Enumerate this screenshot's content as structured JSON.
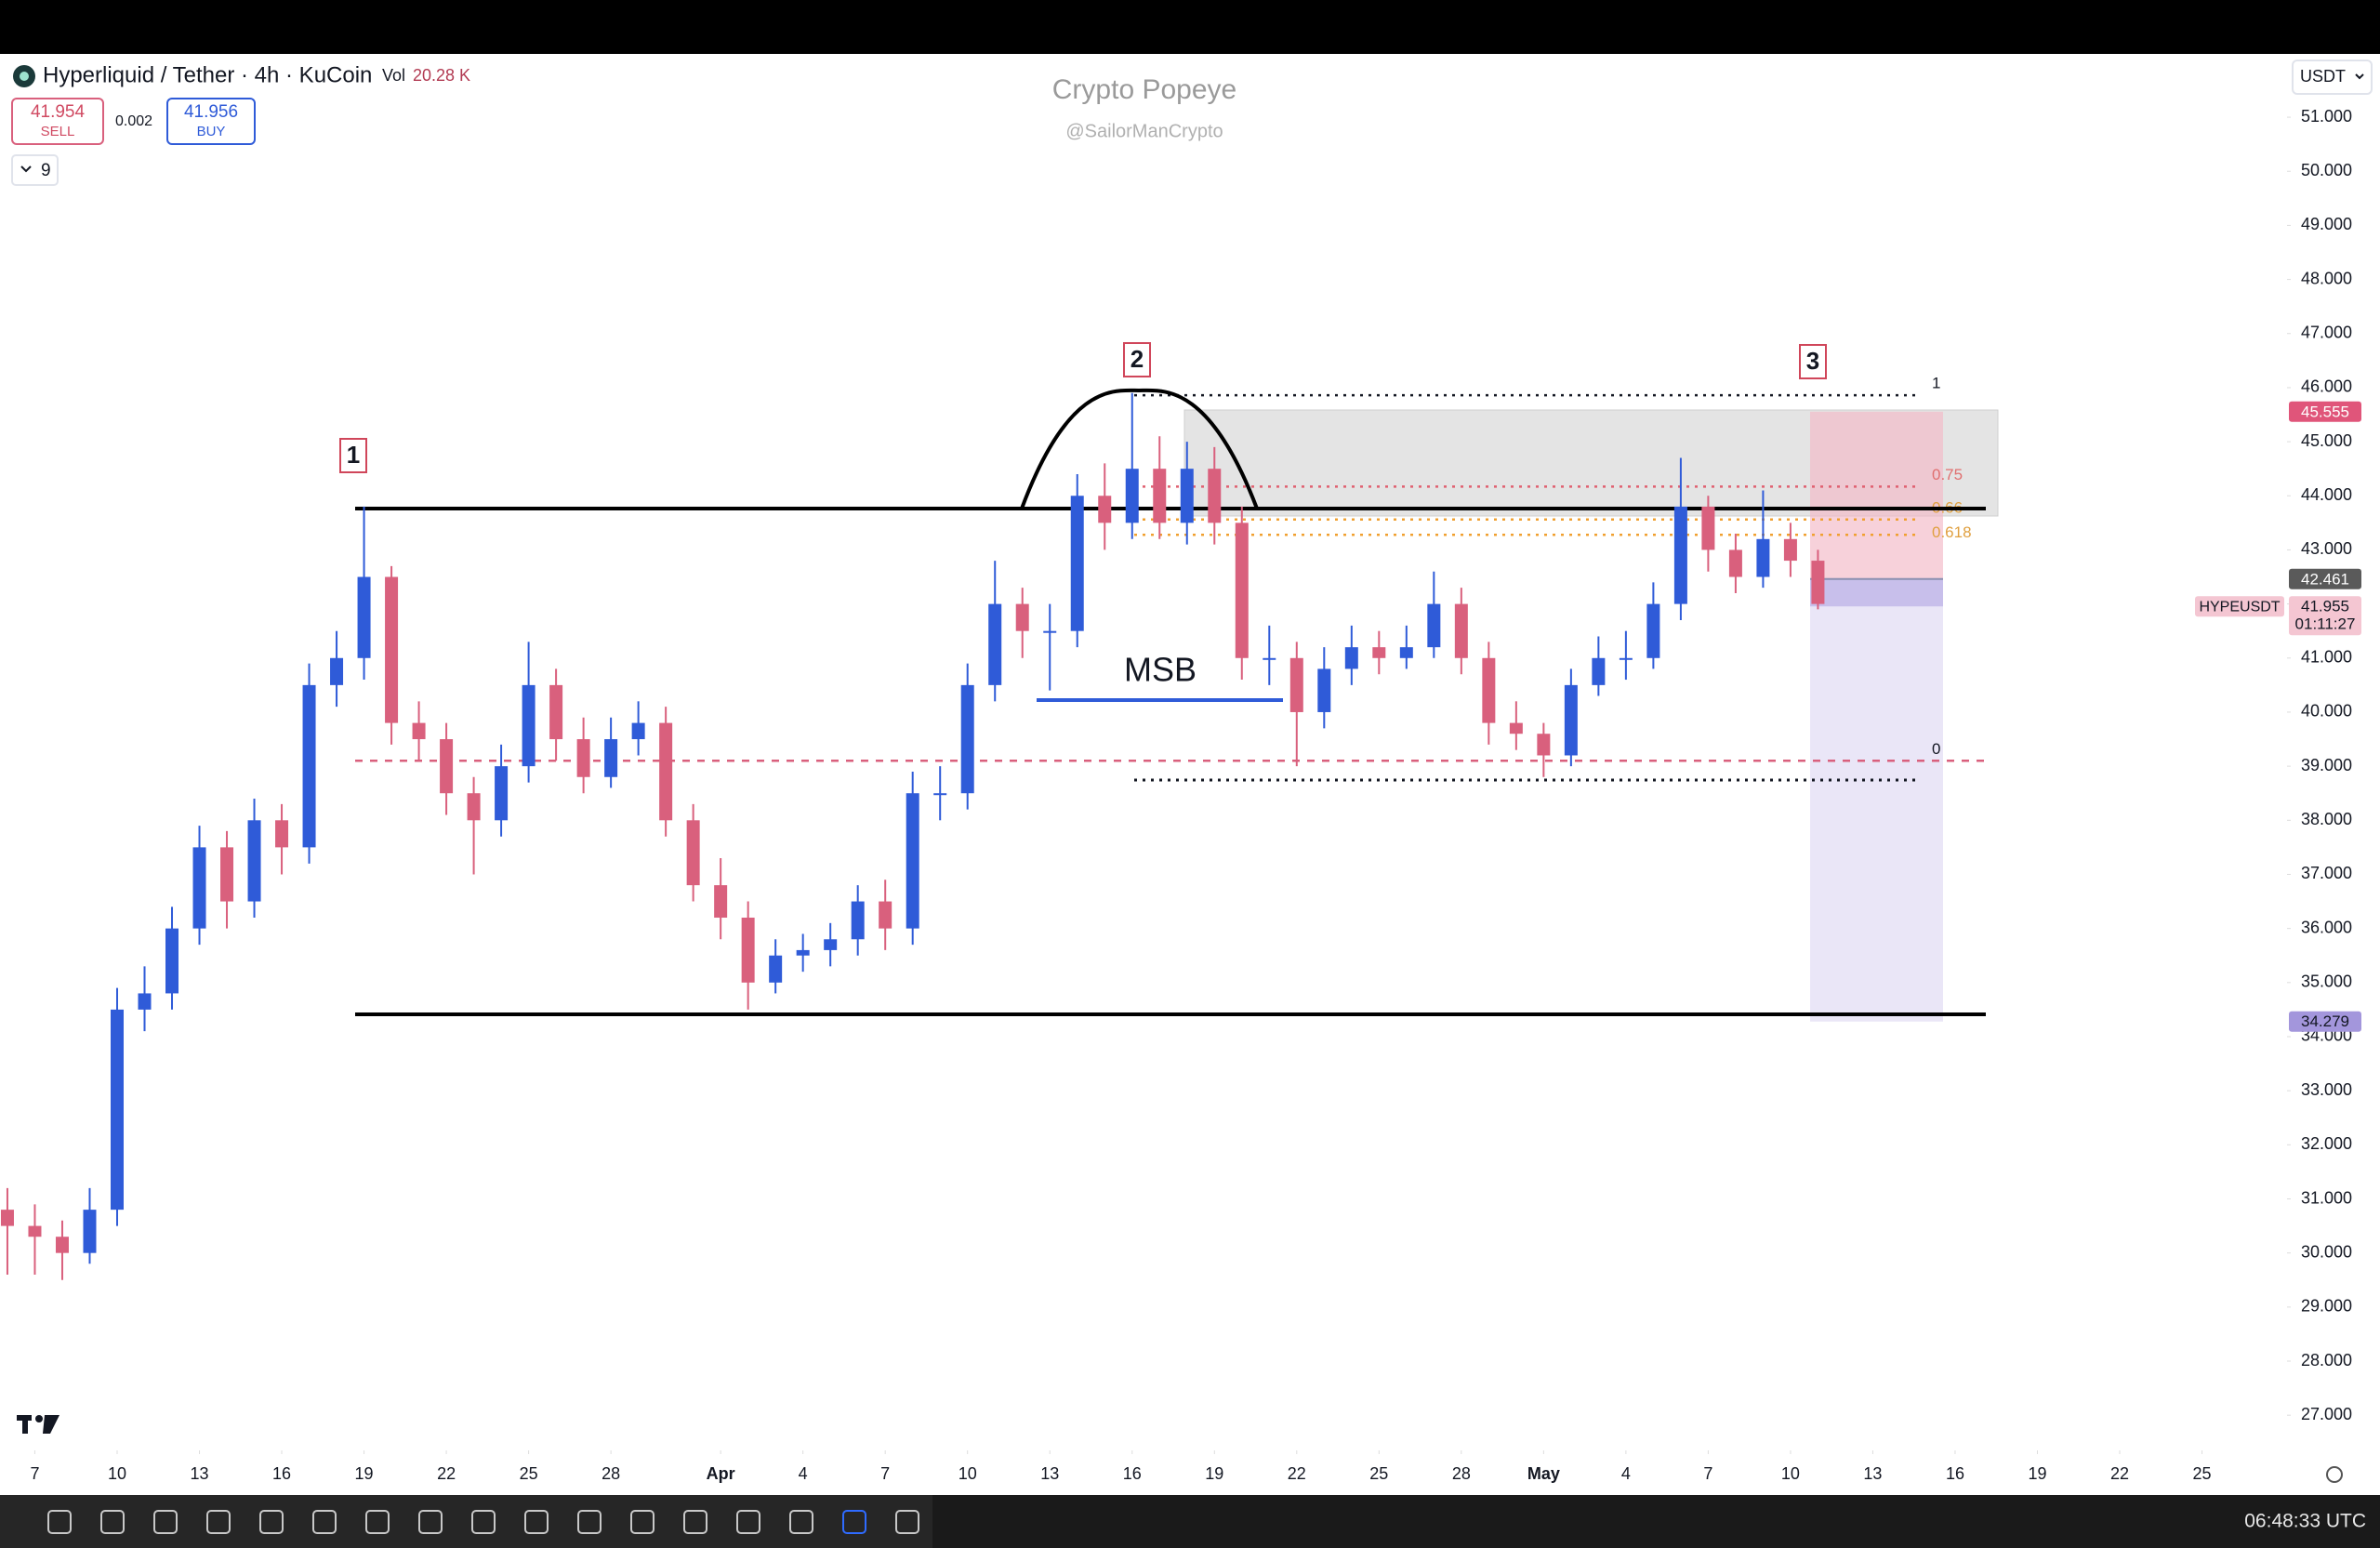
{
  "chart_data": {
    "type": "candlestick",
    "symbol_title": "Hyperliquid / Tether · 4h · KuCoin",
    "volume_label": "Vol",
    "volume_value": "20.28 K",
    "sell_price": 41.954,
    "sell_label": "SELL",
    "spread": 0.002,
    "buy_price": 41.956,
    "buy_label": "BUY",
    "indicators_count": 9,
    "watermark_title": "Crypto Popeye",
    "watermark_handle": "@SailorManCrypto",
    "currency": "USDT",
    "clock": "06:48:33 UTC",
    "markers": [
      "1",
      "2",
      "3"
    ],
    "annotation": "MSB",
    "fib_range": [
      39.1,
      45.86
    ],
    "fib_levels": [
      1,
      0.75,
      0.66,
      0.618,
      0
    ],
    "up_color": "#2f5bd8",
    "down_color": "#d9607d",
    "xlim": [
      -1.27,
      82.1
    ],
    "ylim": [
      26.35,
      52.17
    ],
    "xticks": [
      {
        "value": 0,
        "label": "7"
      },
      {
        "value": 3,
        "label": "10"
      },
      {
        "value": 6,
        "label": "13"
      },
      {
        "value": 9,
        "label": "16"
      },
      {
        "value": 12,
        "label": "19"
      },
      {
        "value": 15,
        "label": "22"
      },
      {
        "value": 18,
        "label": "25"
      },
      {
        "value": 21,
        "label": "28"
      },
      {
        "value": 25,
        "label": "Apr"
      },
      {
        "value": 28,
        "label": "4"
      },
      {
        "value": 31,
        "label": "7"
      },
      {
        "value": 34,
        "label": "10"
      },
      {
        "value": 37,
        "label": "13"
      },
      {
        "value": 40,
        "label": "16"
      },
      {
        "value": 43,
        "label": "19"
      },
      {
        "value": 46,
        "label": "22"
      },
      {
        "value": 49,
        "label": "25"
      },
      {
        "value": 52,
        "label": "28"
      },
      {
        "value": 55,
        "label": "May"
      },
      {
        "value": 58,
        "label": "4"
      },
      {
        "value": 61,
        "label": "7"
      },
      {
        "value": 64,
        "label": "10"
      },
      {
        "value": 67,
        "label": "13"
      },
      {
        "value": 70,
        "label": "16"
      },
      {
        "value": 73,
        "label": "19"
      },
      {
        "value": 76,
        "label": "22"
      },
      {
        "value": 79,
        "label": "25"
      }
    ],
    "yticks": [
      {
        "value": 27,
        "label": "27.000"
      },
      {
        "value": 28,
        "label": "28.000"
      },
      {
        "value": 29,
        "label": "29.000"
      },
      {
        "value": 30,
        "label": "30.000"
      },
      {
        "value": 31,
        "label": "31.000"
      },
      {
        "value": 32,
        "label": "32.000"
      },
      {
        "value": 33,
        "label": "33.000"
      },
      {
        "value": 34,
        "label": "34.000"
      },
      {
        "value": 35,
        "label": "35.000"
      },
      {
        "value": 36,
        "label": "36.000"
      },
      {
        "value": 37,
        "label": "37.000"
      },
      {
        "value": 38,
        "label": "38.000"
      },
      {
        "value": 39,
        "label": "39.000"
      },
      {
        "value": 40,
        "label": "40.000"
      },
      {
        "value": 41,
        "label": "41.000"
      },
      {
        "value": 42,
        "label": "42.000"
      },
      {
        "value": 43,
        "label": "43.000"
      },
      {
        "value": 44,
        "label": "44.000"
      },
      {
        "value": 45,
        "label": "45.000"
      },
      {
        "value": 46,
        "label": "46.000"
      },
      {
        "value": 47,
        "label": "47.000"
      },
      {
        "value": 48,
        "label": "48.000"
      },
      {
        "value": 49,
        "label": "49.000"
      },
      {
        "value": 50,
        "label": "50.000"
      },
      {
        "value": 51,
        "label": "51.000"
      }
    ],
    "price_tags": {
      "target": 45.555,
      "entry": 42.461,
      "symbol": "HYPEUSDT",
      "last": 41.955,
      "countdown": "01:11:27",
      "stop": 34.279
    },
    "candles": {
      "x": [
        -1,
        0,
        1,
        2,
        3,
        4,
        5,
        6,
        7,
        8,
        9,
        10,
        11,
        12,
        13,
        14,
        15,
        16,
        17,
        18,
        19,
        20,
        21,
        22,
        23,
        24,
        25,
        26,
        27,
        28,
        29,
        30,
        31,
        32,
        33,
        34,
        35,
        36,
        37,
        38,
        39,
        40,
        41,
        42,
        43,
        44,
        45,
        46,
        47,
        48,
        49,
        50,
        51,
        52,
        53,
        54,
        55,
        56,
        57,
        58,
        59,
        60,
        61,
        62,
        63,
        64,
        65
      ],
      "open": [
        30.8,
        30.5,
        30.3,
        30.0,
        30.8,
        34.5,
        34.8,
        36.0,
        37.5,
        36.5,
        38.0,
        37.5,
        40.5,
        41.0,
        42.5,
        39.8,
        39.5,
        38.5,
        38.0,
        39.0,
        40.5,
        39.5,
        38.8,
        39.5,
        39.8,
        38.0,
        36.8,
        36.2,
        35.0,
        35.5,
        35.6,
        35.8,
        36.5,
        36.0,
        38.5,
        38.5,
        40.5,
        42.0,
        41.5,
        41.5,
        44.0,
        43.5,
        44.5,
        43.5,
        44.5,
        43.5,
        41.0,
        41.0,
        40.0,
        40.8,
        41.2,
        41.0,
        41.2,
        42.0,
        41.0,
        39.8,
        39.6,
        39.2,
        40.5,
        41.0,
        41.0,
        42.0,
        43.8,
        43.0,
        42.5,
        43.2,
        42.8
      ],
      "high": [
        31.2,
        30.9,
        30.6,
        31.2,
        34.9,
        35.3,
        36.4,
        37.9,
        37.8,
        38.4,
        38.3,
        40.9,
        41.5,
        43.8,
        42.7,
        40.2,
        39.8,
        38.8,
        39.4,
        41.3,
        40.8,
        39.9,
        39.9,
        40.2,
        40.1,
        38.3,
        37.3,
        36.5,
        35.8,
        35.9,
        36.1,
        36.8,
        36.9,
        38.9,
        39.0,
        40.9,
        42.8,
        42.3,
        42.0,
        44.4,
        44.6,
        45.9,
        45.1,
        45.0,
        44.9,
        43.8,
        41.6,
        41.3,
        41.2,
        41.6,
        41.5,
        41.6,
        42.6,
        42.3,
        41.3,
        40.2,
        39.8,
        40.8,
        41.4,
        41.5,
        42.4,
        44.7,
        44.0,
        43.3,
        44.1,
        43.5,
        43.0
      ],
      "low": [
        29.6,
        29.6,
        29.5,
        29.8,
        30.5,
        34.1,
        34.5,
        35.7,
        36.0,
        36.2,
        37.0,
        37.2,
        40.1,
        40.6,
        39.4,
        39.1,
        38.1,
        37.0,
        37.7,
        38.7,
        39.1,
        38.5,
        38.6,
        39.2,
        37.7,
        36.5,
        35.8,
        34.5,
        34.8,
        35.2,
        35.3,
        35.5,
        35.6,
        35.7,
        38.0,
        38.2,
        40.2,
        41.0,
        40.4,
        41.2,
        43.0,
        43.2,
        43.2,
        43.1,
        43.1,
        40.6,
        40.5,
        39.0,
        39.7,
        40.5,
        40.7,
        40.8,
        41.0,
        40.7,
        39.4,
        39.3,
        38.8,
        39.0,
        40.3,
        40.6,
        40.8,
        41.7,
        42.6,
        42.2,
        42.3,
        42.5,
        41.9
      ],
      "close": [
        30.5,
        30.3,
        30.0,
        30.8,
        34.5,
        34.8,
        36.0,
        37.5,
        36.5,
        38.0,
        37.5,
        40.5,
        41.0,
        42.5,
        39.8,
        39.5,
        38.5,
        38.0,
        39.0,
        40.5,
        39.5,
        38.8,
        39.5,
        39.8,
        38.0,
        36.8,
        36.2,
        35.0,
        35.5,
        35.6,
        35.8,
        36.5,
        36.0,
        38.5,
        38.5,
        40.5,
        42.0,
        41.5,
        41.5,
        44.0,
        43.5,
        44.5,
        43.5,
        44.5,
        43.5,
        41.0,
        41.0,
        40.0,
        40.8,
        41.2,
        41.0,
        41.2,
        42.0,
        41.0,
        39.8,
        39.6,
        39.2,
        40.5,
        41.0,
        41.0,
        42.0,
        43.8,
        43.0,
        42.5,
        43.2,
        42.8,
        42.0
      ]
    }
  }
}
